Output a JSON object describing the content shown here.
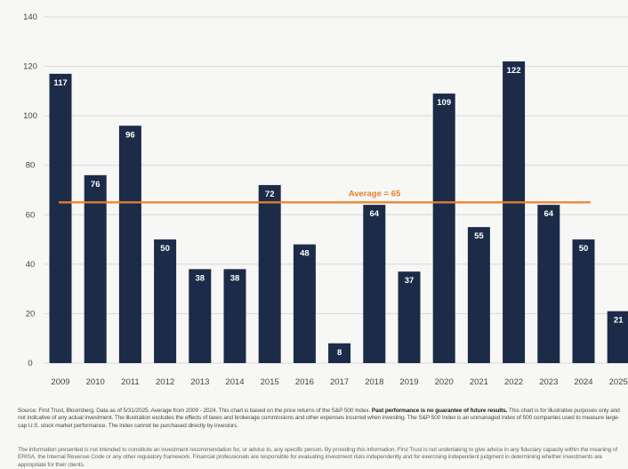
{
  "chart_data": {
    "type": "bar",
    "categories": [
      "2009",
      "2010",
      "2011",
      "2012",
      "2013",
      "2014",
      "2015",
      "2016",
      "2017",
      "2018",
      "2019",
      "2020",
      "2021",
      "2022",
      "2023",
      "2024",
      "2025"
    ],
    "values": [
      117,
      76,
      96,
      50,
      38,
      38,
      72,
      48,
      8,
      64,
      37,
      109,
      55,
      122,
      64,
      50,
      21
    ],
    "data_labels": [
      "117",
      "76",
      "96",
      "50",
      "38",
      "38",
      "72",
      "48",
      "8",
      "64",
      "37",
      "109",
      "55",
      "122",
      "64",
      "50",
      "21"
    ],
    "yticks": [
      "0",
      "20",
      "40",
      "60",
      "80",
      "100",
      "120",
      "140"
    ],
    "ylim": [
      0,
      140
    ],
    "grid": true,
    "average": {
      "value": 65,
      "label": "Average = 65"
    },
    "colors": {
      "bar": "#1c2b47",
      "average_line": "#e8822a",
      "grid": "#d8d8d8"
    }
  },
  "footnotes": {
    "source_text": "Source: First Trust, Bloomberg. Data as of 5/31/2025. Average from 2009 - 2024. This chart is based on the price returns of the S&P 500 Index. ",
    "source_bold": "Past performance is no guarantee of future results.",
    "source_rest": " This chart is for illustrative purposes only and not indicative of any actual investment. The illustration excludes the effects of taxes and brokerage commissions and other expenses incurred when investing. The S&P 500 Index is an unmanaged index of 500 companies used to measure large-cap U.S. stock market performance. The index cannot be purchased directly by investors.",
    "disclaimer": "The information presented is not intended to constitute an investment recommendation for, or advice to, any specific person. By providing this information, First Trust is not undertaking to give advice in any fiduciary capacity within the meaning of ERISA, the Internal Revenue Code or any other regulatory framework. Financial professionals are responsible for evaluating investment risks independently and for exercising independent judgment in determining whether investments are appropriate for their clients."
  }
}
